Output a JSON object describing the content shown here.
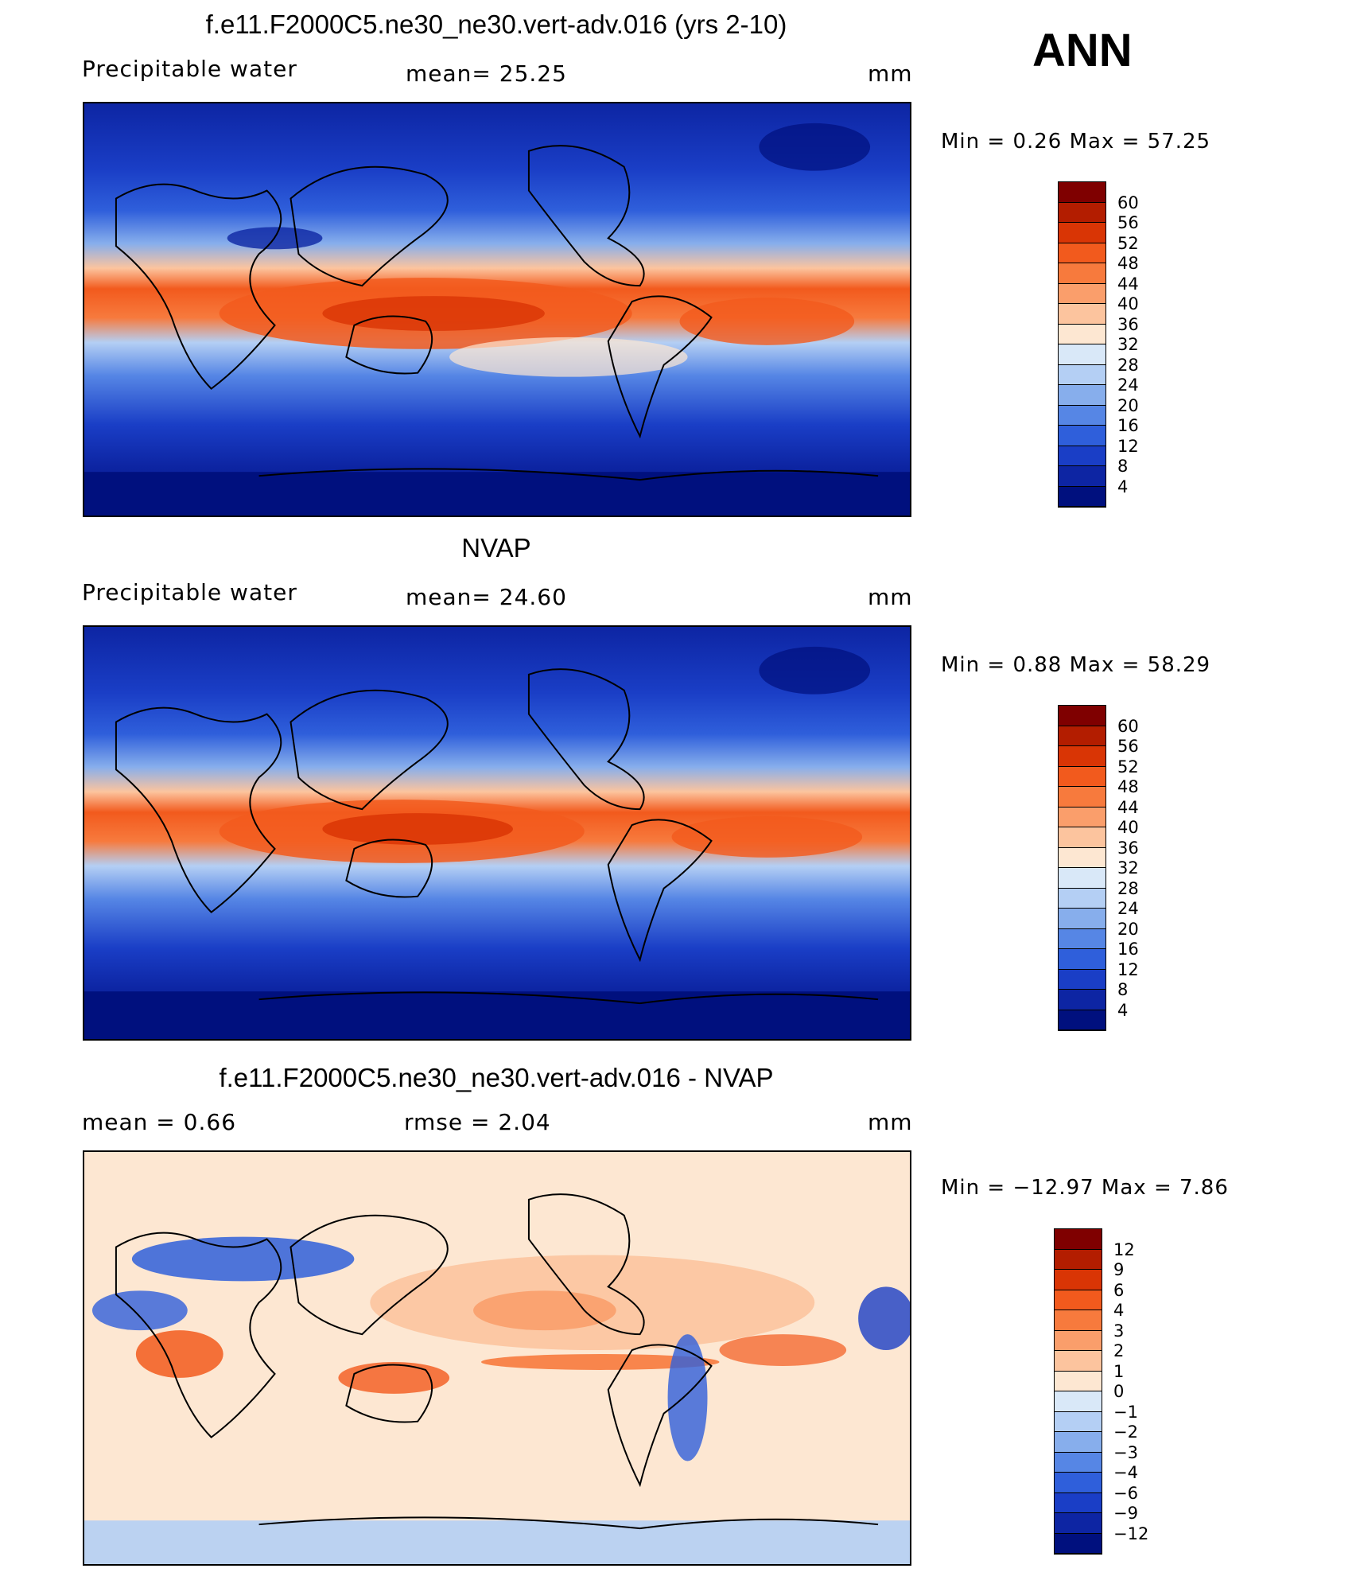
{
  "season": "ANN",
  "panels": [
    {
      "title": "f.e11.F2000C5.ne30_ne30.vert-adv.016 (yrs 2-10)",
      "left_label": "Precipitable  water",
      "center_label": "mean=   25.25",
      "right_label": "mm",
      "minmax": "Min  =     0.26  Max  =    57.25",
      "levels": [
        "60",
        "56",
        "52",
        "48",
        "44",
        "40",
        "36",
        "32",
        "28",
        "24",
        "20",
        "16",
        "12",
        "8",
        "4"
      ],
      "colors": [
        "#7f0000",
        "#b31d00",
        "#d93505",
        "#f25a1d",
        "#f77a3d",
        "#fa9e6b",
        "#fcc49e",
        "#fde7d2",
        "#d9e8f8",
        "#b4cff4",
        "#87aeec",
        "#5686e5",
        "#2f5fdb",
        "#1a3ec6",
        "#0d25a3",
        "#00107e"
      ]
    },
    {
      "title": "NVAP",
      "left_label": "Precipitable  water",
      "center_label": "mean=   24.60",
      "right_label": "mm",
      "minmax": "Min  =     0.88  Max  =    58.29",
      "levels": [
        "60",
        "56",
        "52",
        "48",
        "44",
        "40",
        "36",
        "32",
        "28",
        "24",
        "20",
        "16",
        "12",
        "8",
        "4"
      ],
      "colors": [
        "#7f0000",
        "#b31d00",
        "#d93505",
        "#f25a1d",
        "#f77a3d",
        "#fa9e6b",
        "#fcc49e",
        "#fde7d2",
        "#d9e8f8",
        "#b4cff4",
        "#87aeec",
        "#5686e5",
        "#2f5fdb",
        "#1a3ec6",
        "#0d25a3",
        "#00107e"
      ]
    },
    {
      "title": "f.e11.F2000C5.ne30_ne30.vert-adv.016 - NVAP",
      "left_label": "mean  =     0.66",
      "center_label": "rmse  =     2.04",
      "right_label": "mm",
      "minmax": "Min  = −12.97  Max  =     7.86",
      "levels": [
        "12",
        "9",
        "6",
        "4",
        "3",
        "2",
        "1",
        "0",
        "−1",
        "−2",
        "−3",
        "−4",
        "−6",
        "−9",
        "−12"
      ],
      "colors": [
        "#7f0000",
        "#b31d00",
        "#d93505",
        "#f25a1d",
        "#f77a3d",
        "#fa9e6b",
        "#fcc49e",
        "#fde7d2",
        "#d9e8f8",
        "#b4cff4",
        "#87aeec",
        "#5686e5",
        "#2f5fdb",
        "#1a3ec6",
        "#0d25a3",
        "#00107e"
      ]
    }
  ]
}
